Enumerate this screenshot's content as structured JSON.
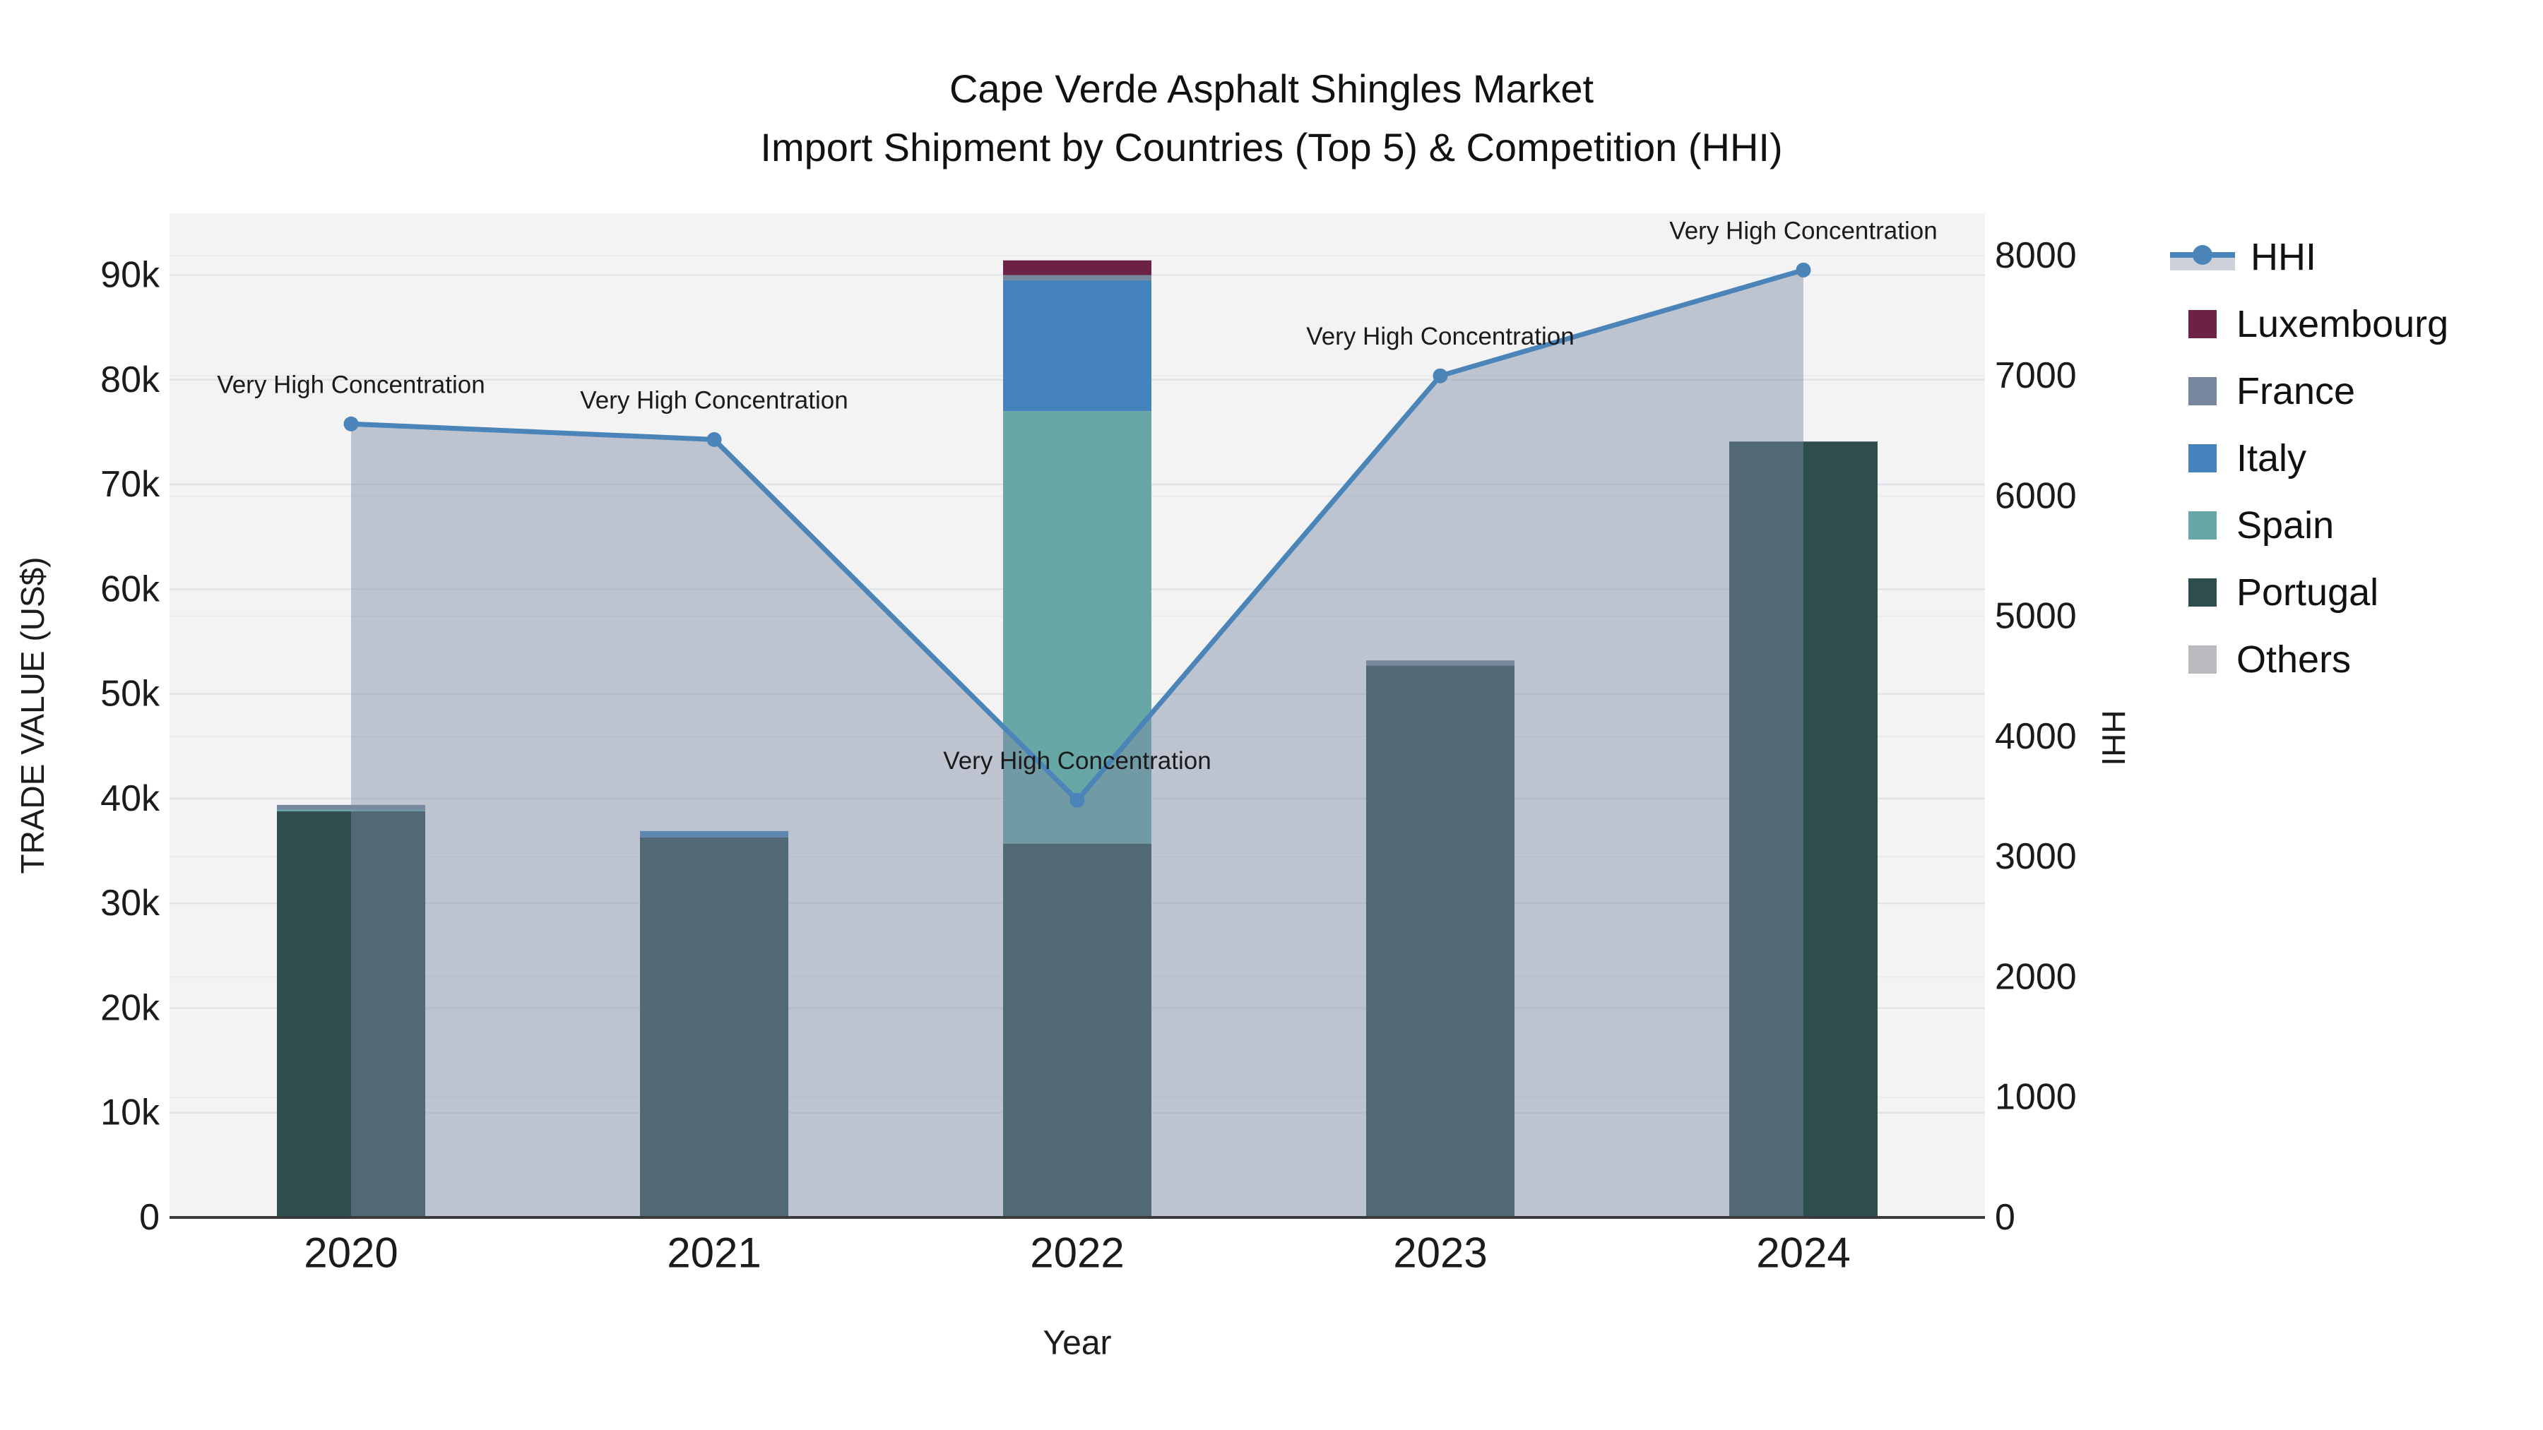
{
  "title": {
    "line1": "Cape Verde Asphalt Shingles Market",
    "line2": "Import Shipment by Countries (Top 5) & Competition (HHI)"
  },
  "axes": {
    "left_title": "TRADE VALUE (US$)",
    "right_title": "HHI",
    "x_title": "Year",
    "left_tick_labels": [
      "0",
      "10k",
      "20k",
      "30k",
      "40k",
      "50k",
      "60k",
      "70k",
      "80k",
      "90k"
    ],
    "left_tick_values": [
      0,
      10000,
      20000,
      30000,
      40000,
      50000,
      60000,
      70000,
      80000,
      90000
    ],
    "right_tick_labels": [
      "0",
      "1000",
      "2000",
      "3000",
      "4000",
      "5000",
      "6000",
      "7000",
      "8000"
    ],
    "right_tick_values": [
      0,
      1000,
      2000,
      3000,
      4000,
      5000,
      6000,
      7000,
      8000
    ]
  },
  "annotation_text": "Very High Concentration",
  "legend": {
    "items": [
      {
        "label": "HHI",
        "type": "line"
      },
      {
        "label": "Luxembourg",
        "type": "box",
        "color": "#6d2144"
      },
      {
        "label": "France",
        "type": "box",
        "color": "#76869c"
      },
      {
        "label": "Italy",
        "type": "box",
        "color": "#4483bb"
      },
      {
        "label": "Spain",
        "type": "box",
        "color": "#67a7a5"
      },
      {
        "label": "Portugal",
        "type": "box",
        "color": "#2e4d4d"
      },
      {
        "label": "Others",
        "type": "box",
        "color": "#b9bbbe"
      }
    ]
  },
  "chart_data": {
    "type": "combo-stacked-bar-line",
    "title": "Cape Verde Asphalt Shingles Market — Import Shipment by Countries (Top 5) & Competition (HHI)",
    "categories": [
      "2020",
      "2021",
      "2022",
      "2023",
      "2024"
    ],
    "bar_unit": "US$",
    "bar_series": [
      {
        "name": "Portugal",
        "color": "#2e4d4d",
        "values": [
          38800,
          36300,
          35700,
          52700,
          74100
        ]
      },
      {
        "name": "Spain",
        "color": "#67a7a5",
        "values": [
          150,
          0,
          41300,
          0,
          0
        ]
      },
      {
        "name": "Italy",
        "color": "#4483bb",
        "values": [
          0,
          600,
          12500,
          0,
          0
        ]
      },
      {
        "name": "France",
        "color": "#76869c",
        "values": [
          450,
          0,
          500,
          500,
          0
        ]
      },
      {
        "name": "Luxembourg",
        "color": "#6d2144",
        "values": [
          0,
          0,
          1400,
          0,
          0
        ]
      },
      {
        "name": "Others",
        "color": "#b9bbbe",
        "values": [
          0,
          0,
          0,
          0,
          0
        ]
      }
    ],
    "bar_totals": [
      39400,
      36900,
      91400,
      53200,
      74100
    ],
    "line_series": {
      "name": "HHI",
      "color": "#4a84b8",
      "area_fill": "rgba(125,139,163,0.45)",
      "legend_band_color": "#ccd1da",
      "values": [
        6600,
        6470,
        3470,
        7000,
        7880
      ],
      "annotations": [
        "Very High Concentration",
        "Very High Concentration",
        "Very High Concentration",
        "Very High Concentration",
        "Very High Concentration"
      ]
    },
    "left_axis": {
      "label": "TRADE VALUE (US$)",
      "range": [
        0,
        95900
      ],
      "grid": true,
      "grid_color": "#e1e4e6"
    },
    "right_axis": {
      "label": "HHI",
      "range": [
        0,
        8352
      ],
      "grid": true,
      "grid_color": "#e8eaec"
    },
    "xlabel": "Year",
    "legend_position": "right",
    "plot_bg": "#f3f3f4",
    "axis_line_color": "#3a3a3a",
    "tick_color": "#1b1b1b"
  }
}
